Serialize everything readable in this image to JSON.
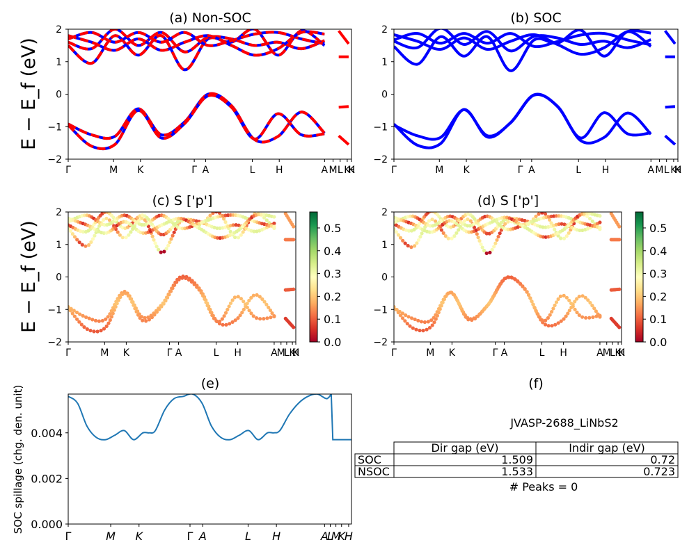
{
  "chart_data": [
    {
      "id": "a",
      "type": "line",
      "title": "(a) Non-SOC",
      "ylabel": "E − E_f (eV)",
      "ylim": [
        -2,
        2
      ],
      "yticks": [
        -2,
        -1,
        0,
        1,
        2
      ],
      "xticks": [
        "Γ",
        "M",
        "K",
        "Γ",
        "A",
        "L",
        "H",
        "A",
        "M",
        "L",
        "K",
        "H",
        "K"
      ],
      "series_colors": [
        "#0000ff",
        "#ff0000"
      ],
      "series_style": "blue solid with red dashed overlay",
      "bands_valence": [
        {
          "x": [
            0,
            1,
            2,
            3,
            4,
            5,
            6,
            7,
            8,
            9,
            10,
            11
          ],
          "y": [
            -0.92,
            -1.25,
            -1.3,
            -0.45,
            -1.25,
            -0.85,
            0.0,
            -0.35,
            -1.4,
            -1.3,
            -0.55,
            -1.2
          ]
        },
        {
          "x": [
            0,
            1,
            2,
            3,
            4,
            5,
            6,
            7,
            8,
            9,
            10,
            11
          ],
          "y": [
            -0.95,
            -1.6,
            -1.55,
            -0.5,
            -1.35,
            -0.9,
            -0.05,
            -0.4,
            -1.38,
            -0.6,
            -1.25,
            -1.22
          ]
        }
      ],
      "bands_conduction": [
        {
          "x": [
            0,
            1,
            2,
            3,
            4,
            5,
            6,
            7,
            8,
            9,
            10,
            11
          ],
          "y": [
            1.5,
            0.95,
            1.8,
            1.2,
            1.8,
            0.75,
            1.7,
            1.6,
            2.0,
            1.2,
            1.95,
            1.5
          ]
        },
        {
          "x": [
            0,
            1,
            2,
            3,
            4,
            5,
            6,
            7,
            8,
            9,
            10,
            11
          ],
          "y": [
            1.6,
            1.4,
            2.0,
            1.5,
            1.9,
            1.3,
            1.75,
            1.7,
            1.5,
            1.6,
            1.4,
            1.65
          ]
        },
        {
          "x": [
            0,
            1,
            2,
            3,
            4,
            5,
            6,
            7,
            8,
            9,
            10,
            11
          ],
          "y": [
            1.7,
            1.9,
            1.6,
            1.9,
            1.6,
            1.9,
            1.5,
            1.65,
            1.85,
            1.9,
            1.7,
            1.55
          ]
        },
        {
          "x": [
            0,
            1,
            2,
            3,
            4,
            5,
            6,
            7,
            8,
            9,
            10,
            11
          ],
          "y": [
            1.8,
            1.6,
            1.35,
            1.7,
            1.35,
            1.6,
            1.8,
            1.5,
            1.2,
            1.4,
            1.9,
            1.85
          ]
        }
      ]
    },
    {
      "id": "b",
      "type": "line",
      "title": "(b) SOC",
      "ylim": [
        -2,
        2
      ],
      "yticks": [
        -2,
        -1,
        0,
        1,
        2
      ],
      "xticks": [
        "Γ",
        "M",
        "K",
        "Γ",
        "A",
        "L",
        "H",
        "A",
        "M",
        "L",
        "K",
        "H",
        "K"
      ],
      "series_colors": [
        "#0000ff"
      ]
    },
    {
      "id": "c",
      "type": "scatter",
      "title": "(c)  S ['p']",
      "ylabel": "E − E_f (eV)",
      "ylim": [
        -2,
        2
      ],
      "yticks": [
        -2,
        -1,
        0,
        1,
        2
      ],
      "xticks": [
        "Γ",
        "M",
        "K",
        "Γ",
        "A",
        "L",
        "H",
        "A",
        "M",
        "L",
        "K",
        "H",
        "K"
      ],
      "colorbar": {
        "colormap": "RdYlGn",
        "range": [
          0.0,
          0.57
        ],
        "ticks": [
          "0.0",
          "0.1",
          "0.2",
          "0.3",
          "0.4",
          "0.5"
        ]
      }
    },
    {
      "id": "d",
      "type": "scatter",
      "title": "(d) S ['p']",
      "ylim": [
        -2,
        2
      ],
      "yticks": [
        -2,
        -1,
        0,
        1,
        2
      ],
      "xticks": [
        "Γ",
        "M",
        "K",
        "Γ",
        "A",
        "L",
        "H",
        "A",
        "M",
        "L",
        "K",
        "H",
        "K"
      ],
      "colorbar": {
        "colormap": "RdYlGn",
        "range": [
          0.0,
          0.57
        ],
        "ticks": [
          "0.0",
          "0.1",
          "0.2",
          "0.3",
          "0.4",
          "0.5"
        ]
      }
    },
    {
      "id": "e",
      "type": "line",
      "title": "(e)",
      "ylabel": "SOC spillage (chg. den. unit)",
      "ylim": [
        0.0,
        0.0057
      ],
      "yticks": [
        "0.000",
        "0.002",
        "0.004"
      ],
      "xticks": [
        "Γ",
        "M",
        "K",
        "Γ",
        "A",
        "L",
        "H",
        "A",
        "L",
        "M",
        "K",
        "H"
      ],
      "series": [
        {
          "color": "#1f77b4",
          "x": [
            0,
            0.3,
            0.6,
            0.9,
            1.2,
            1.5,
            1.8,
            2.1,
            2.4,
            2.6,
            2.8,
            3.1,
            3.4,
            3.7,
            4.0,
            4.3,
            4.6,
            4.9,
            5.2,
            5.5,
            5.8,
            6.1,
            6.4,
            6.6,
            6.8,
            7.1,
            7.4,
            7.7,
            8.0,
            8.3,
            8.45,
            8.5,
            8.8,
            9.1
          ],
          "y": [
            0.0056,
            0.0053,
            0.0043,
            0.0038,
            0.0037,
            0.0039,
            0.0041,
            0.0037,
            0.004,
            0.004,
            0.0041,
            0.005,
            0.0055,
            0.0056,
            0.0057,
            0.0053,
            0.0043,
            0.0038,
            0.0037,
            0.0039,
            0.0041,
            0.0037,
            0.004,
            0.004,
            0.0041,
            0.0048,
            0.0053,
            0.0056,
            0.0057,
            0.0055,
            0.0057,
            0.0037,
            0.0037,
            0.0037
          ]
        }
      ]
    },
    {
      "id": "f",
      "type": "table",
      "title": "(f)",
      "subtitle": "JVASP-2688_LiNbS2",
      "columns": [
        "Dir gap (eV)",
        "Indir gap (eV)"
      ],
      "rows": [
        {
          "label": "SOC",
          "values": [
            "1.509",
            "0.72"
          ]
        },
        {
          "label": "NSOC",
          "values": [
            "1.533",
            "0.723"
          ]
        }
      ],
      "footer": "# Peaks = 0"
    }
  ]
}
